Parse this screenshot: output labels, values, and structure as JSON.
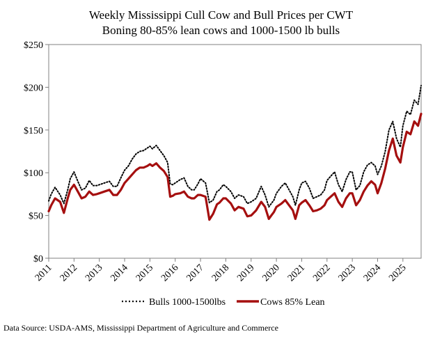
{
  "chart_data": {
    "type": "line",
    "title": "Weekly Mississippi Cull Cow and Bull Prices per CWT",
    "subtitle": "Boning 80-85% lean cows and 1000-1500 lb bulls",
    "xlabel": "",
    "ylabel": "",
    "x_ticks": [
      "2011",
      "2012",
      "2013",
      "2014",
      "2015",
      "2016",
      "2017",
      "2018",
      "2019",
      "2020",
      "2021",
      "2022",
      "2023",
      "2024",
      "2025"
    ],
    "y_ticks": [
      "$0",
      "$50",
      "$100",
      "$150",
      "$200",
      "$250"
    ],
    "xlim": [
      2011,
      2025.72
    ],
    "ylim": [
      0,
      250
    ],
    "grid": false,
    "legend_position": "bottom",
    "series": [
      {
        "name": "Bulls 1000-1500lbs",
        "color": "#000000",
        "style": "dotted",
        "x": [
          2011.0,
          2011.1,
          2011.25,
          2011.45,
          2011.6,
          2011.75,
          2011.85,
          2012.0,
          2012.15,
          2012.3,
          2012.45,
          2012.6,
          2012.75,
          2012.9,
          2013.0,
          2013.2,
          2013.4,
          2013.55,
          2013.7,
          2013.85,
          2014.0,
          2014.15,
          2014.3,
          2014.45,
          2014.6,
          2014.75,
          2014.9,
          2015.0,
          2015.1,
          2015.25,
          2015.4,
          2015.55,
          2015.7,
          2015.8,
          2015.9,
          2016.0,
          2016.2,
          2016.35,
          2016.5,
          2016.65,
          2016.75,
          2016.9,
          2017.0,
          2017.2,
          2017.35,
          2017.5,
          2017.65,
          2017.75,
          2017.9,
          2018.0,
          2018.2,
          2018.35,
          2018.5,
          2018.7,
          2018.85,
          2019.0,
          2019.2,
          2019.4,
          2019.55,
          2019.7,
          2019.8,
          2019.9,
          2020.0,
          2020.2,
          2020.35,
          2020.5,
          2020.65,
          2020.75,
          2020.9,
          2021.0,
          2021.15,
          2021.3,
          2021.45,
          2021.6,
          2021.75,
          2021.9,
          2022.0,
          2022.15,
          2022.3,
          2022.45,
          2022.6,
          2022.75,
          2022.9,
          2023.0,
          2023.15,
          2023.3,
          2023.45,
          2023.6,
          2023.75,
          2023.9,
          2024.0,
          2024.15,
          2024.3,
          2024.45,
          2024.6,
          2024.75,
          2024.9,
          2025.0,
          2025.15,
          2025.3,
          2025.45,
          2025.6,
          2025.72
        ],
        "values": [
          67,
          75,
          83,
          74,
          64,
          80,
          93,
          101,
          90,
          80,
          82,
          91,
          85,
          85,
          86,
          88,
          90,
          84,
          84,
          94,
          103,
          108,
          116,
          122,
          125,
          126,
          129,
          131,
          128,
          132,
          126,
          120,
          112,
          87,
          86,
          88,
          92,
          94,
          84,
          80,
          80,
          87,
          93,
          88,
          65,
          68,
          78,
          80,
          86,
          84,
          78,
          70,
          74,
          72,
          64,
          66,
          70,
          84,
          74,
          60,
          64,
          68,
          76,
          84,
          88,
          80,
          72,
          62,
          80,
          88,
          90,
          82,
          70,
          72,
          74,
          80,
          91,
          96,
          101,
          86,
          78,
          92,
          101,
          101,
          80,
          85,
          101,
          109,
          112,
          108,
          98,
          108,
          125,
          150,
          160,
          140,
          130,
          155,
          172,
          168,
          185,
          180,
          202
        ]
      },
      {
        "name": "Cows 85% Lean",
        "color": "#a50f0f",
        "style": "solid",
        "x": [
          2011.0,
          2011.1,
          2011.25,
          2011.45,
          2011.6,
          2011.75,
          2011.85,
          2012.0,
          2012.15,
          2012.3,
          2012.45,
          2012.6,
          2012.75,
          2012.9,
          2013.0,
          2013.2,
          2013.4,
          2013.55,
          2013.7,
          2013.85,
          2014.0,
          2014.15,
          2014.3,
          2014.45,
          2014.6,
          2014.75,
          2014.9,
          2015.0,
          2015.1,
          2015.25,
          2015.4,
          2015.55,
          2015.7,
          2015.8,
          2015.9,
          2016.0,
          2016.2,
          2016.35,
          2016.5,
          2016.65,
          2016.75,
          2016.9,
          2017.0,
          2017.2,
          2017.35,
          2017.5,
          2017.65,
          2017.75,
          2017.9,
          2018.0,
          2018.2,
          2018.35,
          2018.5,
          2018.7,
          2018.85,
          2019.0,
          2019.2,
          2019.4,
          2019.55,
          2019.7,
          2019.8,
          2019.9,
          2020.0,
          2020.2,
          2020.35,
          2020.5,
          2020.65,
          2020.75,
          2020.9,
          2021.0,
          2021.15,
          2021.3,
          2021.45,
          2021.6,
          2021.75,
          2021.9,
          2022.0,
          2022.15,
          2022.3,
          2022.45,
          2022.6,
          2022.75,
          2022.9,
          2023.0,
          2023.15,
          2023.3,
          2023.45,
          2023.6,
          2023.75,
          2023.9,
          2024.0,
          2024.15,
          2024.3,
          2024.45,
          2024.6,
          2024.75,
          2024.9,
          2025.0,
          2025.15,
          2025.3,
          2025.45,
          2025.6,
          2025.72
        ],
        "values": [
          55,
          62,
          70,
          66,
          53,
          70,
          80,
          86,
          78,
          70,
          72,
          78,
          74,
          75,
          76,
          78,
          80,
          74,
          74,
          80,
          88,
          93,
          98,
          103,
          106,
          106,
          108,
          110,
          108,
          111,
          106,
          102,
          95,
          72,
          73,
          75,
          76,
          78,
          72,
          70,
          70,
          74,
          74,
          72,
          45,
          52,
          63,
          65,
          70,
          70,
          64,
          56,
          60,
          58,
          49,
          50,
          56,
          66,
          60,
          46,
          50,
          54,
          60,
          64,
          68,
          62,
          56,
          46,
          62,
          65,
          68,
          62,
          55,
          56,
          58,
          62,
          68,
          72,
          76,
          66,
          60,
          70,
          76,
          76,
          62,
          68,
          78,
          85,
          90,
          86,
          76,
          88,
          105,
          126,
          140,
          120,
          112,
          130,
          148,
          145,
          160,
          155,
          169
        ]
      }
    ],
    "source": "Data Source: USDA-AMS, Mississippi Department of Agriculture and Commerce"
  }
}
